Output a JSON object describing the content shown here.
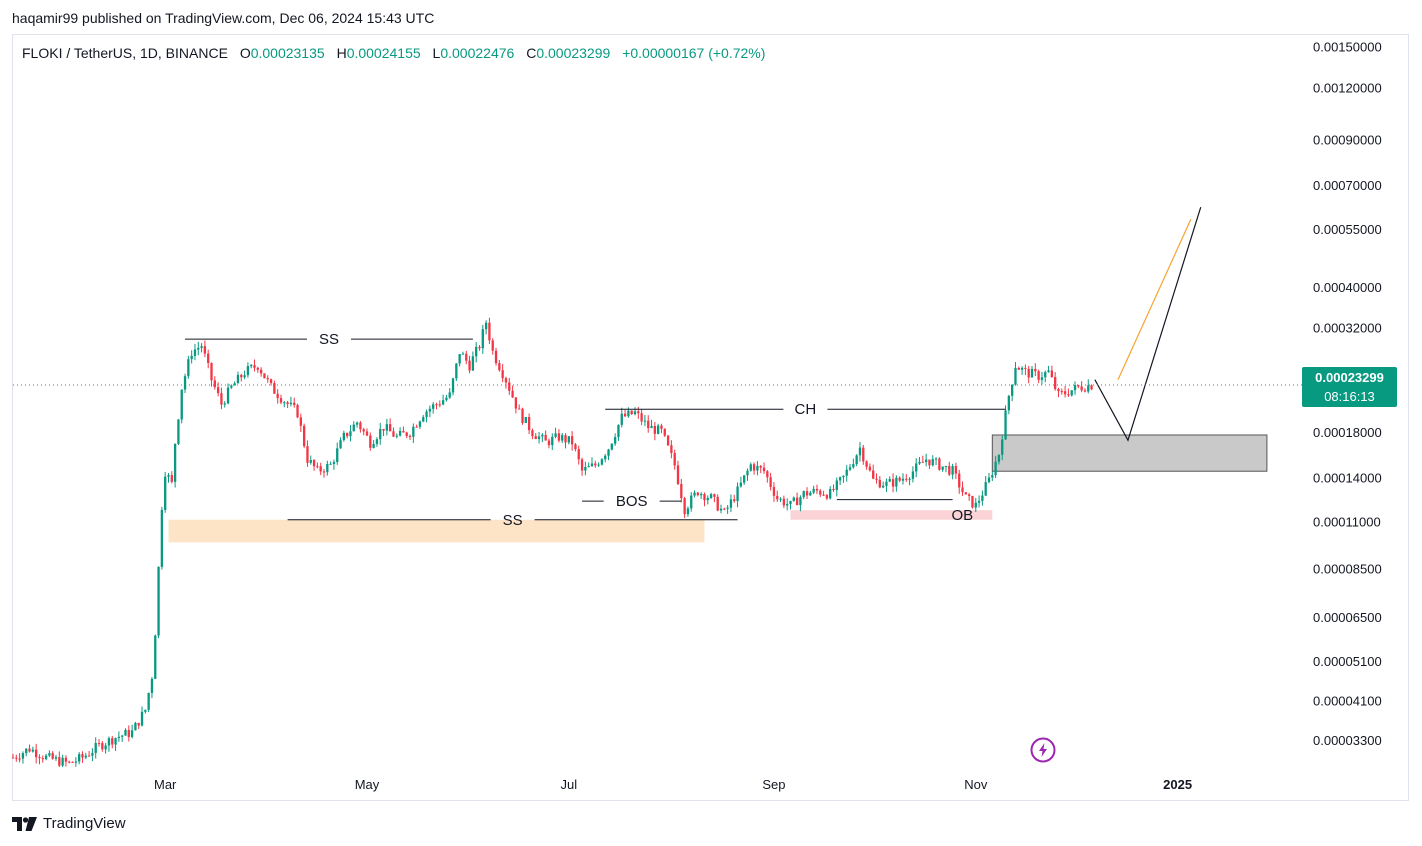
{
  "header": {
    "published": "haqamir99 published on TradingView.com, Dec 06, 2024 15:43 UTC"
  },
  "symbol": {
    "name": "FLOKI / TetherUS, 1D, BINANCE",
    "o_label": "O",
    "o_value": "0.00023135",
    "h_label": "H",
    "h_value": "0.00024155",
    "l_label": "L",
    "l_value": "0.00022476",
    "c_label": "C",
    "c_value": "0.00023299",
    "change": "+0.00000167 (+0.72%)"
  },
  "price_badge": {
    "price": "0.00023299",
    "countdown": "08:16:13"
  },
  "footer": {
    "brand": "TradingView"
  },
  "colors": {
    "up": "#089981",
    "down": "#f23645",
    "badge": "#089981",
    "orange": "#f7a32e"
  },
  "icons": {
    "logo": "tradingview-logo-icon",
    "bolt": "lightning-bolt-icon"
  },
  "chart_data": {
    "type": "candlestick",
    "y_scale": "log",
    "y_ticks": [
      {
        "label": "0.00150000",
        "value": 0.0015
      },
      {
        "label": "0.00120000",
        "value": 0.0012
      },
      {
        "label": "0.00090000",
        "value": 0.0009
      },
      {
        "label": "0.00070000",
        "value": 0.0007
      },
      {
        "label": "0.00055000",
        "value": 0.00055
      },
      {
        "label": "0.00040000",
        "value": 0.0004
      },
      {
        "label": "0.00032000",
        "value": 0.00032
      },
      {
        "label": "0.00018000",
        "value": 0.00018
      },
      {
        "label": "0.00014000",
        "value": 0.00014
      },
      {
        "label": "0.00011000",
        "value": 0.00011
      },
      {
        "label": "0.00008500",
        "value": 8.5e-05
      },
      {
        "label": "0.00006500",
        "value": 6.5e-05
      },
      {
        "label": "0.00005100",
        "value": 5.1e-05
      },
      {
        "label": "0.00004100",
        "value": 4.1e-05
      },
      {
        "label": "0.00003300",
        "value": 3.3e-05
      }
    ],
    "x_ticks": [
      {
        "label": "Mar",
        "date": "2024-03-01"
      },
      {
        "label": "May",
        "date": "2024-05-01"
      },
      {
        "label": "Jul",
        "date": "2024-07-01"
      },
      {
        "label": "Sep",
        "date": "2024-09-01"
      },
      {
        "label": "Nov",
        "date": "2024-11-01"
      },
      {
        "label": "2025",
        "date": "2025-01-01"
      }
    ],
    "x_range": [
      "2024-01-15",
      "2025-02-07"
    ],
    "y_range": [
      2.8e-05,
      0.0016
    ],
    "last_price": 0.00023299,
    "series": [
      {
        "name": "FLOKI / TetherUS",
        "points": [
          {
            "date": "2024-01-15",
            "close": 3e-05
          },
          {
            "date": "2024-01-20",
            "close": 3.15e-05
          },
          {
            "date": "2024-01-25",
            "close": 3e-05
          },
          {
            "date": "2024-02-01",
            "close": 2.9e-05
          },
          {
            "date": "2024-02-05",
            "close": 3e-05
          },
          {
            "date": "2024-02-10",
            "close": 3.2e-05
          },
          {
            "date": "2024-02-15",
            "close": 3.35e-05
          },
          {
            "date": "2024-02-20",
            "close": 3.45e-05
          },
          {
            "date": "2024-02-24",
            "close": 3.9e-05
          },
          {
            "date": "2024-02-26",
            "close": 4.7e-05
          },
          {
            "date": "2024-02-27",
            "close": 6e-05
          },
          {
            "date": "2024-02-28",
            "close": 8.5e-05
          },
          {
            "date": "2024-02-29",
            "close": 0.00012
          },
          {
            "date": "2024-03-01",
            "close": 0.000145
          },
          {
            "date": "2024-03-03",
            "close": 0.000135
          },
          {
            "date": "2024-03-04",
            "close": 0.00017
          },
          {
            "date": "2024-03-06",
            "close": 0.00023
          },
          {
            "date": "2024-03-09",
            "close": 0.00028
          },
          {
            "date": "2024-03-12",
            "close": 0.00029
          },
          {
            "date": "2024-03-15",
            "close": 0.00024
          },
          {
            "date": "2024-03-18",
            "close": 0.00021
          },
          {
            "date": "2024-03-21",
            "close": 0.00023
          },
          {
            "date": "2024-03-25",
            "close": 0.00025
          },
          {
            "date": "2024-03-29",
            "close": 0.00026
          },
          {
            "date": "2024-04-02",
            "close": 0.00023
          },
          {
            "date": "2024-04-07",
            "close": 0.00021
          },
          {
            "date": "2024-04-10",
            "close": 0.0002
          },
          {
            "date": "2024-04-13",
            "close": 0.000155
          },
          {
            "date": "2024-04-16",
            "close": 0.000145
          },
          {
            "date": "2024-04-20",
            "close": 0.00015
          },
          {
            "date": "2024-04-24",
            "close": 0.000175
          },
          {
            "date": "2024-04-28",
            "close": 0.00019
          },
          {
            "date": "2024-05-02",
            "close": 0.00017
          },
          {
            "date": "2024-05-06",
            "close": 0.000185
          },
          {
            "date": "2024-05-10",
            "close": 0.000175
          },
          {
            "date": "2024-05-14",
            "close": 0.00018
          },
          {
            "date": "2024-05-18",
            "close": 0.0002
          },
          {
            "date": "2024-05-22",
            "close": 0.00021
          },
          {
            "date": "2024-05-26",
            "close": 0.00022
          },
          {
            "date": "2024-05-29",
            "close": 0.00028
          },
          {
            "date": "2024-06-01",
            "close": 0.00026
          },
          {
            "date": "2024-06-04",
            "close": 0.00029
          },
          {
            "date": "2024-06-06",
            "close": 0.00033
          },
          {
            "date": "2024-06-08",
            "close": 0.00028
          },
          {
            "date": "2024-06-12",
            "close": 0.00024
          },
          {
            "date": "2024-06-16",
            "close": 0.0002
          },
          {
            "date": "2024-06-20",
            "close": 0.00018
          },
          {
            "date": "2024-06-24",
            "close": 0.00017
          },
          {
            "date": "2024-06-28",
            "close": 0.000175
          },
          {
            "date": "2024-07-02",
            "close": 0.00017
          },
          {
            "date": "2024-07-05",
            "close": 0.000145
          },
          {
            "date": "2024-07-09",
            "close": 0.00015
          },
          {
            "date": "2024-07-13",
            "close": 0.000165
          },
          {
            "date": "2024-07-17",
            "close": 0.000195
          },
          {
            "date": "2024-07-21",
            "close": 0.0002
          },
          {
            "date": "2024-07-25",
            "close": 0.000185
          },
          {
            "date": "2024-07-29",
            "close": 0.00018
          },
          {
            "date": "2024-08-02",
            "close": 0.00015
          },
          {
            "date": "2024-08-05",
            "close": 0.000118
          },
          {
            "date": "2024-08-09",
            "close": 0.00013
          },
          {
            "date": "2024-08-13",
            "close": 0.000125
          },
          {
            "date": "2024-08-17",
            "close": 0.000115
          },
          {
            "date": "2024-08-21",
            "close": 0.00013
          },
          {
            "date": "2024-08-25",
            "close": 0.00015
          },
          {
            "date": "2024-08-29",
            "close": 0.000145
          },
          {
            "date": "2024-09-02",
            "close": 0.000125
          },
          {
            "date": "2024-09-06",
            "close": 0.00012
          },
          {
            "date": "2024-09-10",
            "close": 0.000128
          },
          {
            "date": "2024-09-14",
            "close": 0.00013
          },
          {
            "date": "2024-09-18",
            "close": 0.000128
          },
          {
            "date": "2024-09-22",
            "close": 0.00014
          },
          {
            "date": "2024-09-27",
            "close": 0.000165
          },
          {
            "date": "2024-10-01",
            "close": 0.000138
          },
          {
            "date": "2024-10-05",
            "close": 0.000135
          },
          {
            "date": "2024-10-09",
            "close": 0.000138
          },
          {
            "date": "2024-10-13",
            "close": 0.000145
          },
          {
            "date": "2024-10-17",
            "close": 0.000155
          },
          {
            "date": "2024-10-21",
            "close": 0.00015
          },
          {
            "date": "2024-10-25",
            "close": 0.000145
          },
          {
            "date": "2024-10-29",
            "close": 0.000125
          },
          {
            "date": "2024-11-01",
            "close": 0.00012
          },
          {
            "date": "2024-11-05",
            "close": 0.000138
          },
          {
            "date": "2024-11-08",
            "close": 0.00016
          },
          {
            "date": "2024-11-11",
            "close": 0.00022
          },
          {
            "date": "2024-11-13",
            "close": 0.00026
          },
          {
            "date": "2024-11-16",
            "close": 0.00025
          },
          {
            "date": "2024-11-20",
            "close": 0.000245
          },
          {
            "date": "2024-11-23",
            "close": 0.00025
          },
          {
            "date": "2024-11-26",
            "close": 0.00022
          },
          {
            "date": "2024-11-29",
            "close": 0.000225
          },
          {
            "date": "2024-12-02",
            "close": 0.00023
          },
          {
            "date": "2024-12-06",
            "close": 0.00023299
          }
        ]
      }
    ],
    "annotations": [
      {
        "text": "SS",
        "kind": "level",
        "price": 0.0003,
        "from": "2024-03-07",
        "to": "2024-06-02"
      },
      {
        "text": "SS",
        "kind": "level",
        "price": 0.000111,
        "from": "2024-04-07",
        "to": "2024-08-21"
      },
      {
        "text": "CH",
        "kind": "level",
        "price": 0.000204,
        "from": "2024-07-12",
        "to": "2024-11-10"
      },
      {
        "text": "BOS",
        "kind": "level",
        "price": 0.000123,
        "from": "2024-07-05",
        "to": "2024-08-04"
      },
      {
        "text": "",
        "kind": "level",
        "price": 0.000124,
        "from": "2024-09-20",
        "to": "2024-10-25"
      },
      {
        "text": "",
        "kind": "zone",
        "price_top": 0.000111,
        "price_bottom": 9.8e-05,
        "from": "2024-03-02",
        "to": "2024-08-11",
        "color": "#fde4c7"
      },
      {
        "text": "OB",
        "kind": "zone",
        "price_top": 0.000117,
        "price_bottom": 0.000111,
        "from": "2024-09-06",
        "to": "2024-11-06",
        "color": "#fbd3d6"
      },
      {
        "text": "",
        "kind": "zone",
        "price_top": 0.000177,
        "price_bottom": 0.000145,
        "from": "2024-11-06",
        "to": "2025-01-28",
        "color": "#c9c9c9"
      }
    ],
    "projection": [
      {
        "date": "2024-12-07",
        "price": 0.00024
      },
      {
        "date": "2024-12-17",
        "price": 0.000172
      },
      {
        "date": "2025-01-08",
        "price": 0.00062
      }
    ],
    "projection_alt": [
      {
        "date": "2024-12-14",
        "price": 0.00024
      },
      {
        "date": "2025-01-05",
        "price": 0.00058
      }
    ]
  }
}
